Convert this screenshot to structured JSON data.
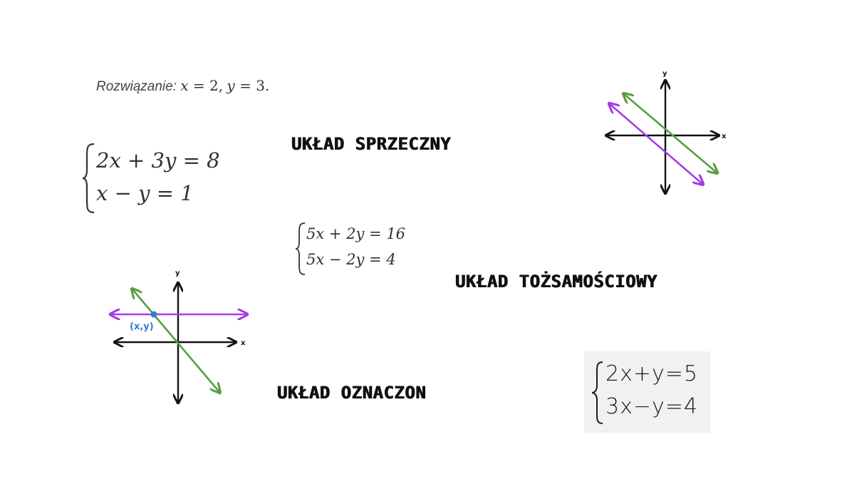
{
  "solution": {
    "label": "Rozwiązanie:",
    "x_var": "x",
    "x_eq": " = 2,",
    "y_var": "y",
    "y_eq": " = 3."
  },
  "system_main": {
    "eq1": "2x + 3y = 8",
    "eq2": "x − y = 1"
  },
  "system_middle": {
    "eq1": "5x + 2y = 16",
    "eq2": "5x − 2y = 4"
  },
  "system_handwritten": {
    "eq1": "2x+y=5",
    "eq2": "3x−y=4"
  },
  "headings": {
    "inconsistent": "UKŁAD SPRZECZNY",
    "dependent": "UKŁAD TOŻSAMOŚCIOWY",
    "determined": "UKŁAD OZNACZON"
  },
  "graph_parallel": {
    "x_label": "x",
    "y_label": "y"
  },
  "graph_intersect": {
    "x_label": "x",
    "y_label": "y",
    "point_label": "(x,y)"
  },
  "colors": {
    "green": "#5a9e44",
    "purple": "#a43ce6",
    "blue": "#2f7fd0",
    "axis": "#111111"
  }
}
